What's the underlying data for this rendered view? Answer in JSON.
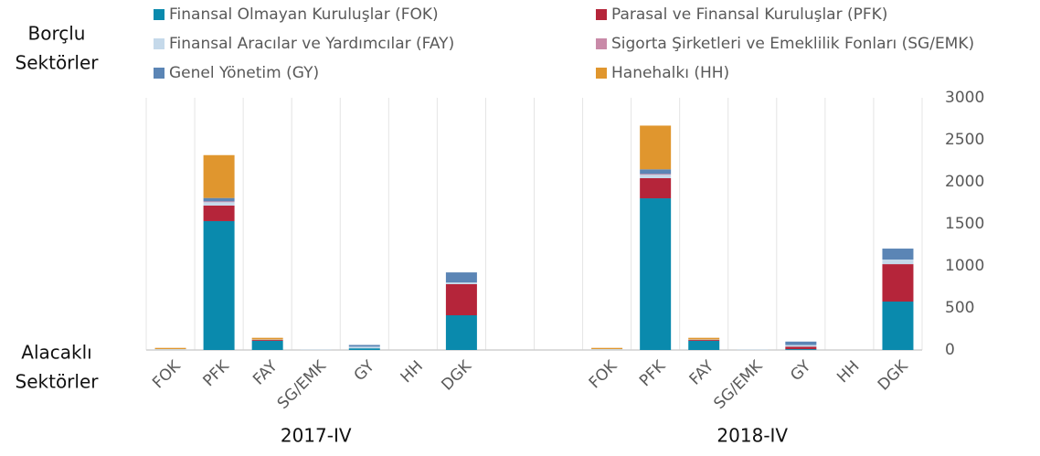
{
  "chart_data": {
    "type": "stacked_bar",
    "categories": [
      "FOK",
      "PFK",
      "FAY",
      "SG/EMK",
      "GY",
      "HH",
      "DGK",
      null,
      null,
      "FOK",
      "PFK",
      "FAY",
      "SG/EMK",
      "GY",
      "HH",
      "DGK"
    ],
    "group_labels": [
      "2017-IV",
      "2018-IV"
    ],
    "debtor_label": [
      "Borçlu",
      "Sektörler"
    ],
    "creditor_label": [
      "Alacaklı",
      "Sektörler"
    ],
    "series": [
      {
        "name": "Finansal Olmayan Kuruluşlar (FOK)",
        "color": "#0a8aad",
        "values": [
          0,
          1533,
          110,
          0,
          20,
          0,
          413,
          null,
          null,
          0,
          1804,
          110,
          0,
          10,
          0,
          576
        ]
      },
      {
        "name": "Parasal ve Finansal Kuruluşlar (PFK)",
        "color": "#b5253a",
        "values": [
          0,
          185,
          10,
          0,
          0,
          0,
          370,
          null,
          null,
          0,
          240,
          10,
          0,
          30,
          0,
          445
        ]
      },
      {
        "name": "Finansal Aracılar ve Yardımcılar (FAY)",
        "color": "#c5d9ea",
        "values": [
          10,
          40,
          5,
          5,
          20,
          0,
          20,
          null,
          null,
          10,
          40,
          5,
          5,
          20,
          0,
          55
        ]
      },
      {
        "name": "Sigorta Şirketleri ve Emeklilik Fonları (SG/EMK)",
        "color": "#c98aa8",
        "values": [
          0,
          10,
          0,
          0,
          0,
          0,
          0,
          null,
          null,
          0,
          10,
          0,
          0,
          0,
          0,
          0
        ]
      },
      {
        "name": "Genel Yönetim (GY)",
        "color": "#5b85b5",
        "values": [
          0,
          40,
          0,
          0,
          20,
          0,
          120,
          null,
          null,
          0,
          55,
          0,
          0,
          40,
          0,
          130
        ]
      },
      {
        "name": "Hanehalkı (HH)",
        "color": "#e0962e",
        "values": [
          15,
          510,
          20,
          0,
          0,
          0,
          0,
          null,
          null,
          15,
          520,
          20,
          0,
          0,
          0,
          0
        ]
      }
    ],
    "ylim": [
      0,
      3000
    ],
    "yticks": [
      0,
      500,
      1000,
      1500,
      2000,
      2500,
      3000
    ],
    "grid": true
  }
}
